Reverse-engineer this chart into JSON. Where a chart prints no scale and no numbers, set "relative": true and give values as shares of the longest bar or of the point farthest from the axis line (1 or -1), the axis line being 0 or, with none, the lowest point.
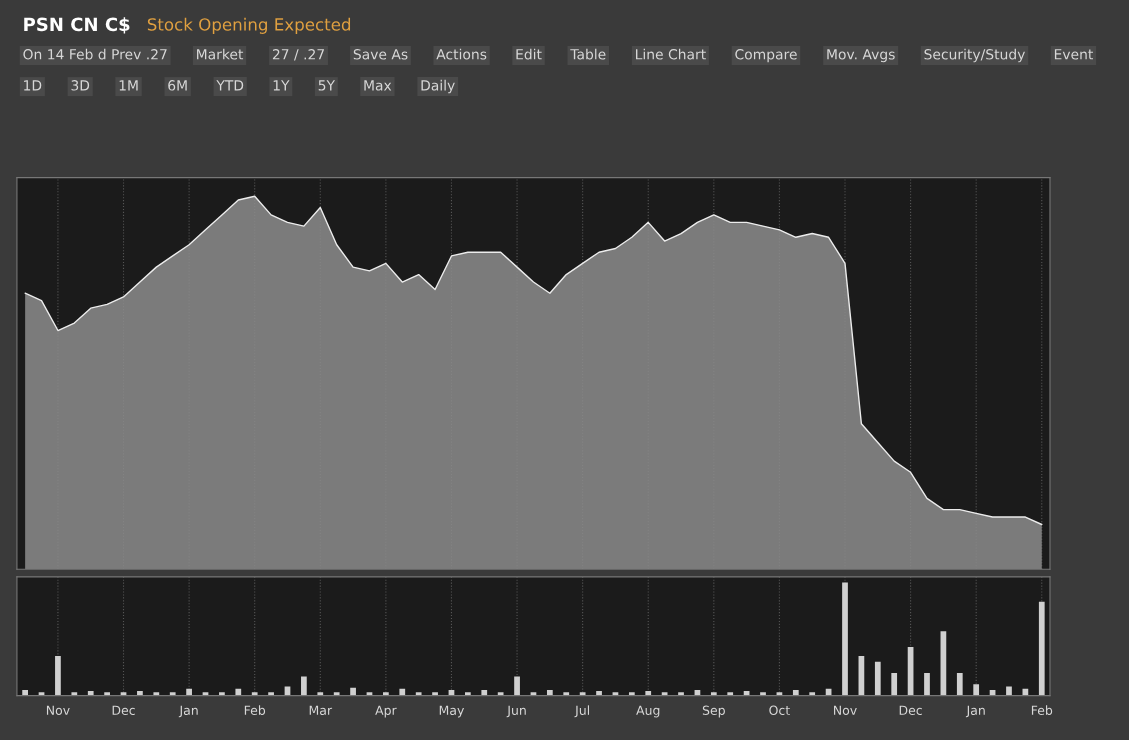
{
  "chart_data": [
    {
      "type": "area",
      "title": "PSN CN C$",
      "subtitle": "Stock Opening Expected",
      "relative": true,
      "grid": "x",
      "tick_labels": false,
      "annotations": [
        "On 14 Feb d Prev .27",
        "Market",
        "27 / .27",
        "Save As",
        "Actions",
        "Edit",
        "Table",
        "Line Chart",
        "Compare",
        "Mov. Avgs",
        "Security/Study",
        "Event",
        "1D",
        "3D",
        "1M",
        "6M",
        "YTD",
        "1Y",
        "5Y",
        "Max",
        "Daily"
      ],
      "categories": [
        null,
        null,
        null,
        null,
        null,
        null,
        null,
        null,
        null,
        null,
        null,
        null,
        null,
        null,
        null,
        null,
        null,
        null,
        null,
        null,
        null,
        null,
        null,
        null,
        null,
        null,
        null,
        null,
        null,
        null,
        null,
        null,
        null,
        null,
        null,
        null,
        null,
        null,
        null,
        null,
        null,
        null,
        null,
        null,
        null,
        null,
        null,
        null,
        null,
        null,
        null,
        null,
        null,
        null,
        null,
        null,
        null,
        null,
        null,
        null,
        null,
        null,
        null
      ],
      "series": [
        {
          "color": "#8c8c8c",
          "values": [
            0.74,
            0.72,
            0.64,
            0.66,
            0.7,
            0.71,
            0.73,
            0.77,
            0.81,
            0.84,
            0.87,
            0.91,
            0.95,
            0.99,
            1.0,
            0.95,
            0.93,
            0.92,
            0.97,
            0.87,
            0.81,
            0.8,
            0.82,
            0.77,
            0.79,
            0.75,
            0.84,
            0.85,
            0.85,
            0.85,
            0.81,
            0.77,
            0.74,
            0.79,
            0.82,
            0.85,
            0.86,
            0.89,
            0.93,
            0.88,
            0.9,
            0.93,
            0.95,
            0.93,
            0.93,
            0.92,
            0.91,
            0.89,
            0.9,
            0.89,
            0.82,
            0.39,
            0.34,
            0.29,
            0.26,
            0.19,
            0.16,
            0.16,
            0.15,
            0.14,
            0.14,
            0.14,
            0.12
          ]
        }
      ]
    },
    {
      "type": "bar",
      "relative": true,
      "grid": "x",
      "tick_labels": "x",
      "categories": [
        null,
        null,
        "Nov",
        null,
        null,
        null,
        "Dec",
        null,
        null,
        null,
        "Jan",
        null,
        null,
        null,
        "Feb",
        null,
        null,
        null,
        "Mar",
        null,
        null,
        null,
        "Apr",
        null,
        null,
        null,
        "May",
        null,
        null,
        null,
        "Jun",
        null,
        null,
        null,
        "Jul",
        null,
        null,
        null,
        "Aug",
        null,
        null,
        null,
        "Sep",
        null,
        null,
        null,
        "Oct",
        null,
        null,
        null,
        "Nov",
        null,
        null,
        null,
        "Dec",
        null,
        null,
        null,
        "Jan",
        null,
        null,
        null,
        "Feb"
      ],
      "series": [
        {
          "color": "#d0d0d0",
          "values": [
            0.05,
            0.03,
            0.35,
            0.03,
            0.04,
            0.03,
            0.03,
            0.04,
            0.03,
            0.03,
            0.06,
            0.03,
            0.03,
            0.06,
            0.03,
            0.03,
            0.08,
            0.17,
            0.03,
            0.03,
            0.07,
            0.03,
            0.03,
            0.06,
            0.03,
            0.03,
            0.05,
            0.03,
            0.05,
            0.03,
            0.17,
            0.03,
            0.05,
            0.03,
            0.03,
            0.04,
            0.03,
            0.03,
            0.04,
            0.03,
            0.03,
            0.05,
            0.03,
            0.03,
            0.04,
            0.03,
            0.03,
            0.05,
            0.03,
            0.06,
            1.0,
            0.35,
            0.3,
            0.2,
            0.43,
            0.2,
            0.57,
            0.2,
            0.1,
            0.05,
            0.08,
            0.06,
            0.83
          ]
        }
      ]
    }
  ]
}
